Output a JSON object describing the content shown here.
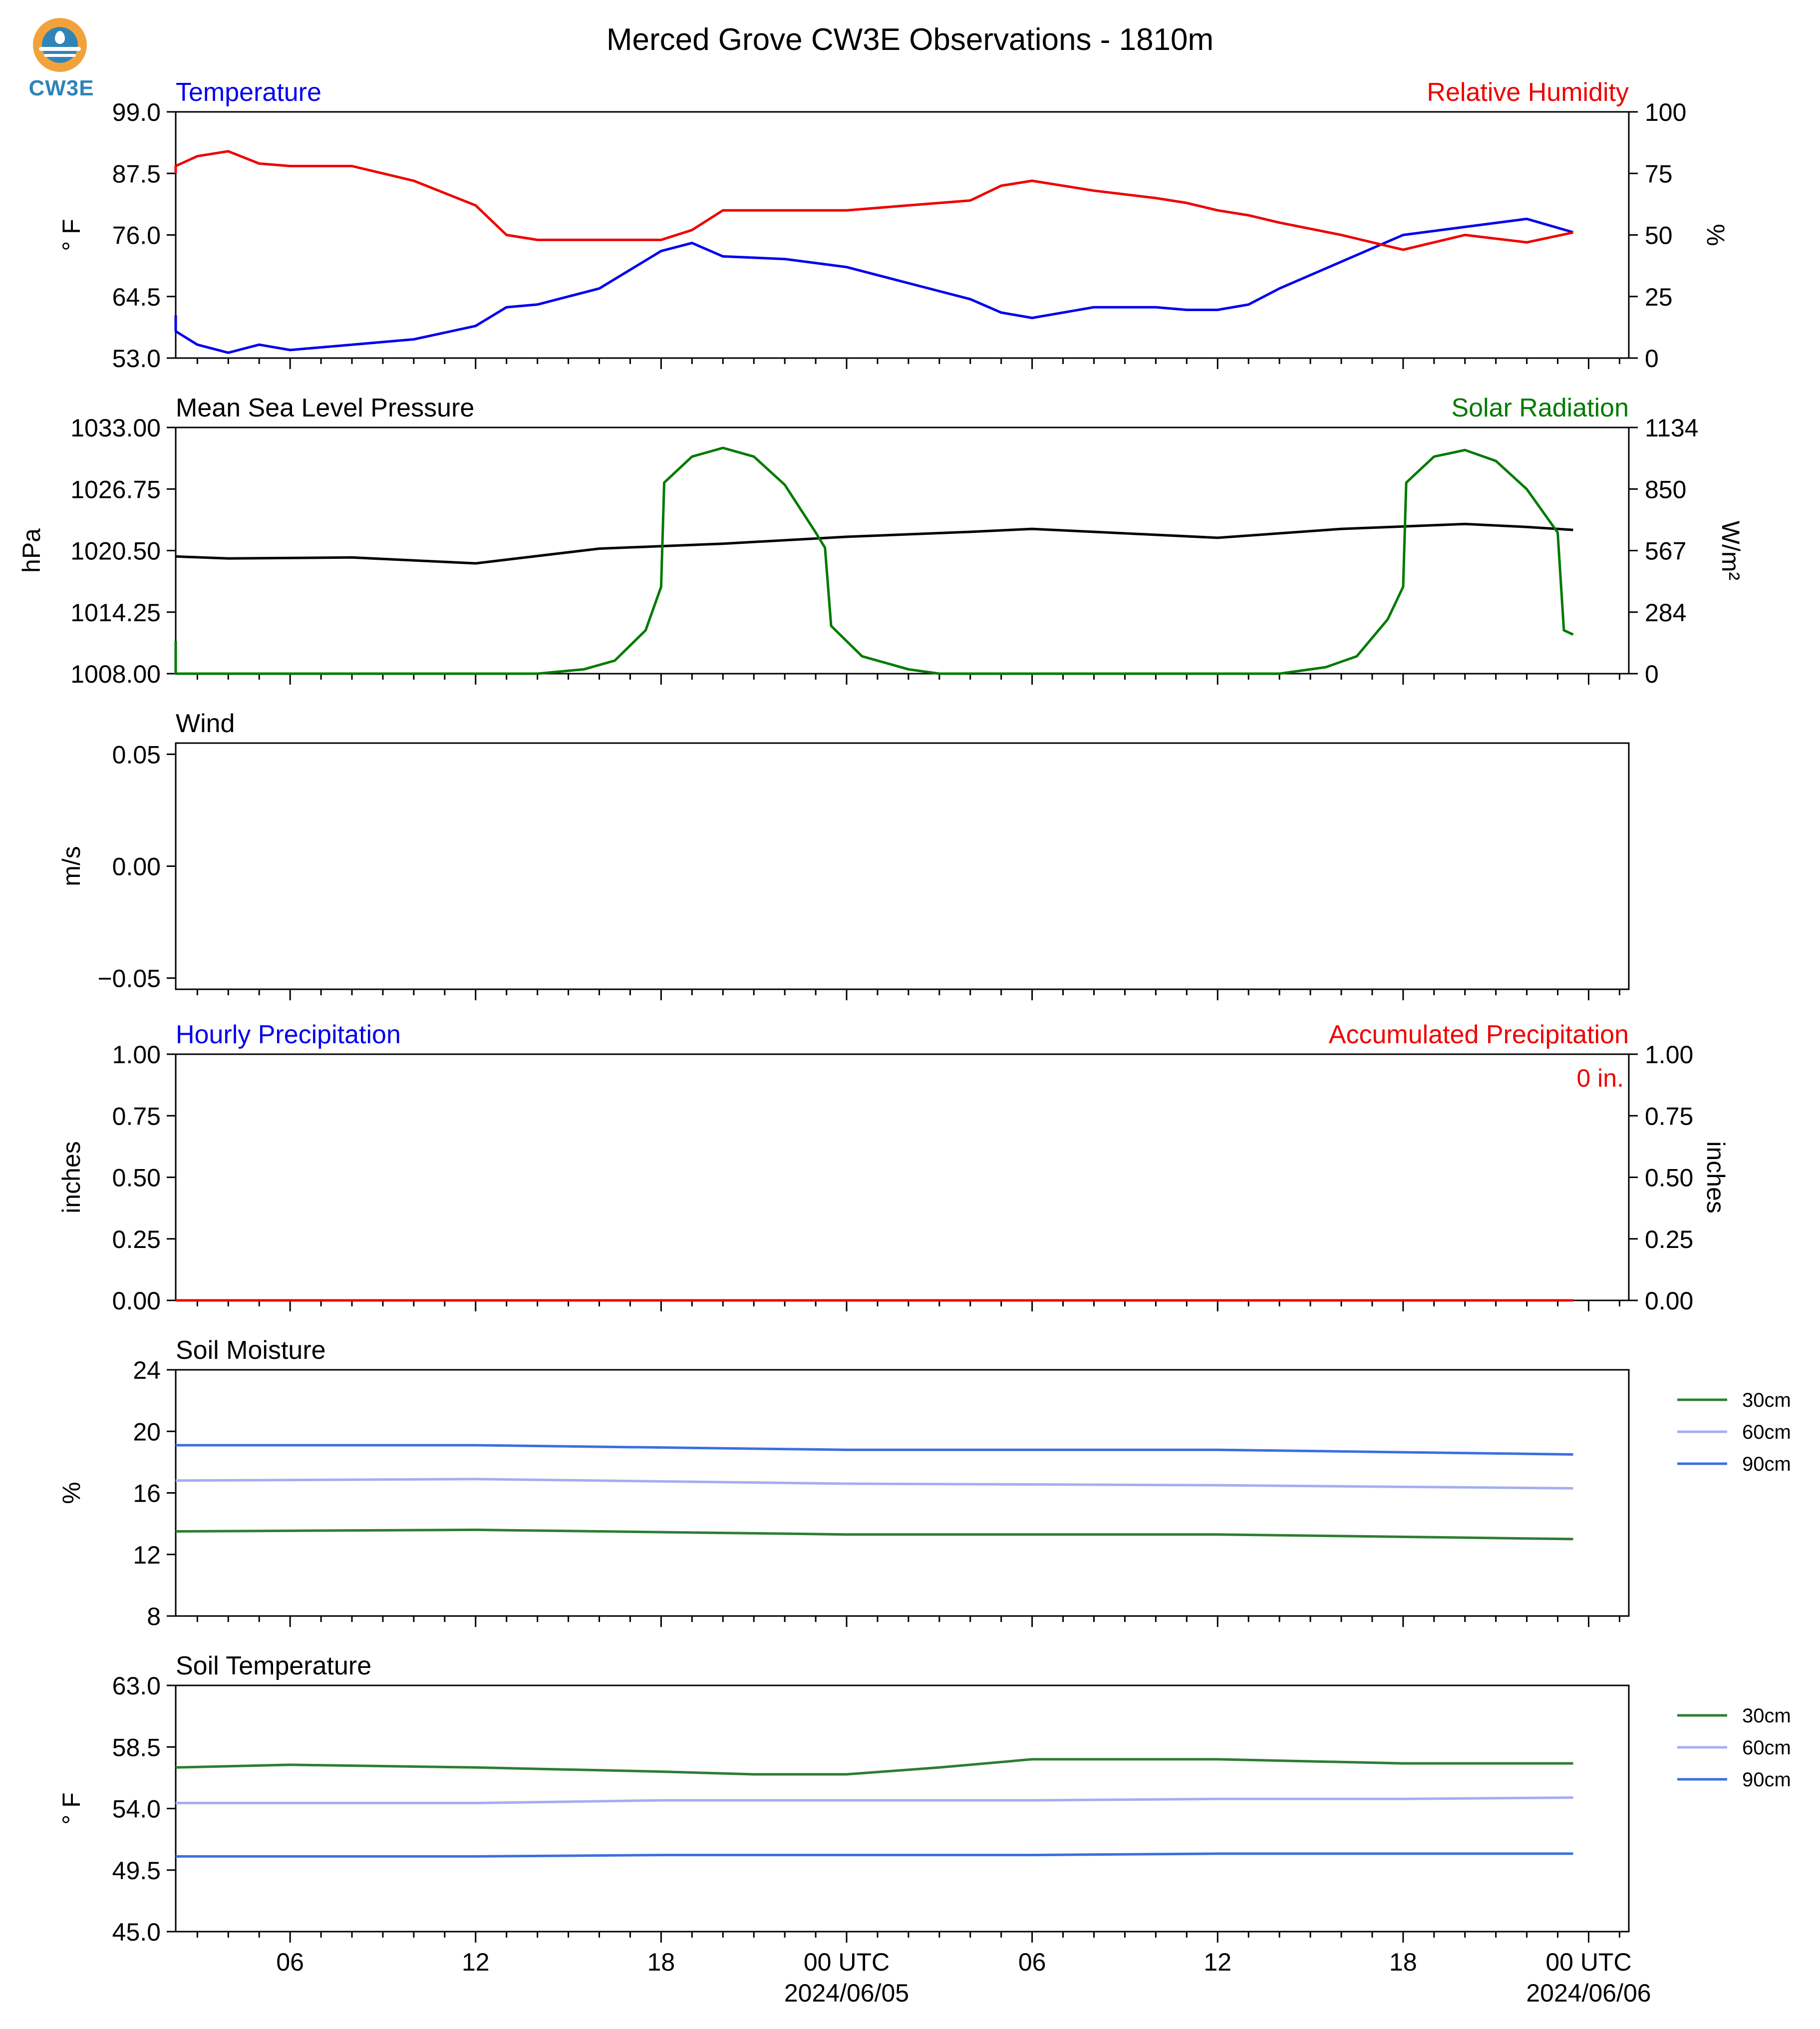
{
  "title": "Merced Grove CW3E Observations - 1810m",
  "logo": {
    "text": "CW3E"
  },
  "colors": {
    "blue": "#0000ee",
    "red": "#ee0000",
    "green": "#007a00",
    "black": "#000000",
    "soil30": "#2e7d32",
    "soil60": "#a4aef0",
    "soil90": "#3b6fe0"
  },
  "x_axis": {
    "tick_labels": [
      "06",
      "12",
      "18",
      "00 UTC",
      "06",
      "12",
      "18",
      "00 UTC"
    ],
    "date_labels": [
      "2024/06/05",
      "2024/06/06"
    ]
  },
  "chart_data": [
    {
      "type": "line",
      "name": "temp_rh",
      "title_left": "Temperature",
      "title_right": "Relative Humidity",
      "ylabel": "° F",
      "ylabel_right": "%",
      "ylim": [
        53.0,
        99.0
      ],
      "ylim_right": [
        0,
        100
      ],
      "yticks": [
        "53.0",
        "64.5",
        "76.0",
        "87.5",
        "99.0"
      ],
      "yticks_right": [
        "0",
        "25",
        "50",
        "75",
        "100"
      ],
      "x_hours": [
        0,
        2,
        3,
        4,
        5,
        6,
        8,
        10,
        12,
        13,
        14,
        16,
        18,
        19,
        20,
        22,
        24,
        26,
        28,
        29,
        30,
        32,
        34,
        35,
        36,
        37,
        38,
        40,
        42,
        44,
        46,
        47.5
      ],
      "series": [
        {
          "name": "Temperature",
          "axis": "left",
          "color": "#0000ee",
          "values": [
            61,
            58,
            55.5,
            54,
            55.5,
            54.5,
            55.5,
            56.5,
            59,
            62.5,
            63,
            66,
            73,
            74.5,
            72,
            71.5,
            70,
            67,
            64,
            61.5,
            60.5,
            62.5,
            62.5,
            62,
            62,
            63,
            66,
            71,
            76,
            77.5,
            79,
            76.5
          ]
        },
        {
          "name": "Relative Humidity",
          "axis": "right",
          "color": "#ee0000",
          "values": [
            75,
            78,
            82,
            84,
            79,
            78,
            78,
            72,
            62,
            50,
            48,
            48,
            48,
            52,
            60,
            60,
            60,
            62,
            64,
            70,
            72,
            68,
            65,
            63,
            60,
            58,
            55,
            50,
            44,
            50,
            47,
            51
          ]
        }
      ]
    },
    {
      "type": "line",
      "name": "pressure_solar",
      "title_left": "Mean Sea Level Pressure",
      "title_right": "Solar Radiation",
      "ylabel": "hPa",
      "ylabel_right": "W/m²",
      "ylim": [
        1008.0,
        1033.0
      ],
      "ylim_right": [
        0,
        1134
      ],
      "yticks": [
        "1008.00",
        "1014.25",
        "1020.50",
        "1026.75",
        "1033.00"
      ],
      "yticks_right": [
        "0",
        "284",
        "567",
        "850",
        "1134"
      ],
      "x_hours": [
        0,
        4,
        8,
        12,
        16,
        20,
        24,
        28,
        30,
        32,
        36,
        40,
        44,
        46,
        47.5
      ],
      "series": [
        {
          "name": "Mean Sea Level Pressure",
          "axis": "left",
          "color": "#000000",
          "values": [
            1019.9,
            1019.7,
            1019.8,
            1019.2,
            1020.7,
            1021.2,
            1021.9,
            1022.4,
            1022.7,
            1022.4,
            1021.8,
            1022.7,
            1023.2,
            1022.9,
            1022.6
          ]
        }
      ],
      "solar": {
        "name": "Solar Radiation",
        "axis": "right",
        "color": "#007a00",
        "points": [
          [
            0,
            150
          ],
          [
            0.3,
            80
          ],
          [
            1,
            30
          ],
          [
            2,
            0
          ],
          [
            14,
            0
          ],
          [
            15.5,
            20
          ],
          [
            16.5,
            60
          ],
          [
            17.5,
            200
          ],
          [
            18,
            400
          ],
          [
            18.1,
            880
          ],
          [
            19,
            1000
          ],
          [
            20,
            1040
          ],
          [
            21,
            1000
          ],
          [
            22,
            870
          ],
          [
            23,
            650
          ],
          [
            23.3,
            580
          ],
          [
            23.5,
            220
          ],
          [
            24.5,
            80
          ],
          [
            26,
            20
          ],
          [
            27,
            0
          ],
          [
            38,
            0
          ],
          [
            39.5,
            30
          ],
          [
            40.5,
            80
          ],
          [
            41.5,
            250
          ],
          [
            42,
            400
          ],
          [
            42.1,
            880
          ],
          [
            43,
            1000
          ],
          [
            44,
            1030
          ],
          [
            45,
            980
          ],
          [
            46,
            850
          ],
          [
            47,
            650
          ],
          [
            47.2,
            200
          ],
          [
            47.5,
            180
          ]
        ]
      }
    },
    {
      "type": "line",
      "name": "wind",
      "title_left": "Wind",
      "ylabel": "m/s",
      "ylim": [
        -0.055,
        0.055
      ],
      "yticks": [
        "−0.05",
        "0.00",
        "0.05"
      ],
      "series": []
    },
    {
      "type": "line",
      "name": "precip",
      "title_left": "Hourly Precipitation",
      "title_right": "Accumulated Precipitation",
      "ylabel": "inches",
      "ylabel_right": "inches",
      "ylim": [
        0,
        1
      ],
      "ylim_right": [
        0,
        1
      ],
      "yticks": [
        "0.00",
        "0.25",
        "0.50",
        "0.75",
        "1.00"
      ],
      "yticks_right": [
        "0.00",
        "0.25",
        "0.50",
        "0.75",
        "1.00"
      ],
      "annotation": "0 in.",
      "series": [
        {
          "name": "Hourly Precipitation",
          "axis": "left",
          "color": "#0000ee",
          "values": [
            0,
            0
          ]
        },
        {
          "name": "Accumulated Precipitation",
          "axis": "right",
          "color": "#ee0000",
          "values": [
            0,
            0
          ]
        }
      ],
      "x_hours": [
        0,
        47.5
      ]
    },
    {
      "type": "line",
      "name": "soil_moisture",
      "title_left": "Soil Moisture",
      "ylabel": "%",
      "ylim": [
        8,
        24
      ],
      "yticks": [
        "8",
        "12",
        "16",
        "20",
        "24"
      ],
      "legend": "right",
      "x_hours": [
        0,
        12,
        24,
        36,
        47.5
      ],
      "series": [
        {
          "name": "30cm",
          "color": "#2e7d32",
          "values": [
            13.5,
            13.6,
            13.3,
            13.3,
            13.0
          ]
        },
        {
          "name": "60cm",
          "color": "#a4aef0",
          "values": [
            16.8,
            16.9,
            16.6,
            16.5,
            16.3
          ]
        },
        {
          "name": "90cm",
          "color": "#3b6fe0",
          "values": [
            19.1,
            19.1,
            18.8,
            18.8,
            18.5
          ]
        }
      ]
    },
    {
      "type": "line",
      "name": "soil_temp",
      "title_left": "Soil Temperature",
      "ylabel": "° F",
      "ylim": [
        45.0,
        63.0
      ],
      "yticks": [
        "45.0",
        "49.5",
        "54.0",
        "58.5",
        "63.0"
      ],
      "legend": "right",
      "x_hours": [
        0,
        6,
        12,
        18,
        21,
        24,
        27,
        30,
        36,
        42,
        47.5
      ],
      "series": [
        {
          "name": "30cm",
          "color": "#2e7d32",
          "values": [
            57.0,
            57.2,
            57.0,
            56.7,
            56.5,
            56.5,
            57.0,
            57.6,
            57.6,
            57.3,
            57.3
          ]
        },
        {
          "name": "60cm",
          "color": "#a4aef0",
          "values": [
            54.4,
            54.4,
            54.4,
            54.6,
            54.6,
            54.6,
            54.6,
            54.6,
            54.7,
            54.7,
            54.8
          ]
        },
        {
          "name": "90cm",
          "color": "#3b6fe0",
          "values": [
            50.5,
            50.5,
            50.5,
            50.6,
            50.6,
            50.6,
            50.6,
            50.6,
            50.7,
            50.7,
            50.7
          ]
        }
      ]
    }
  ]
}
